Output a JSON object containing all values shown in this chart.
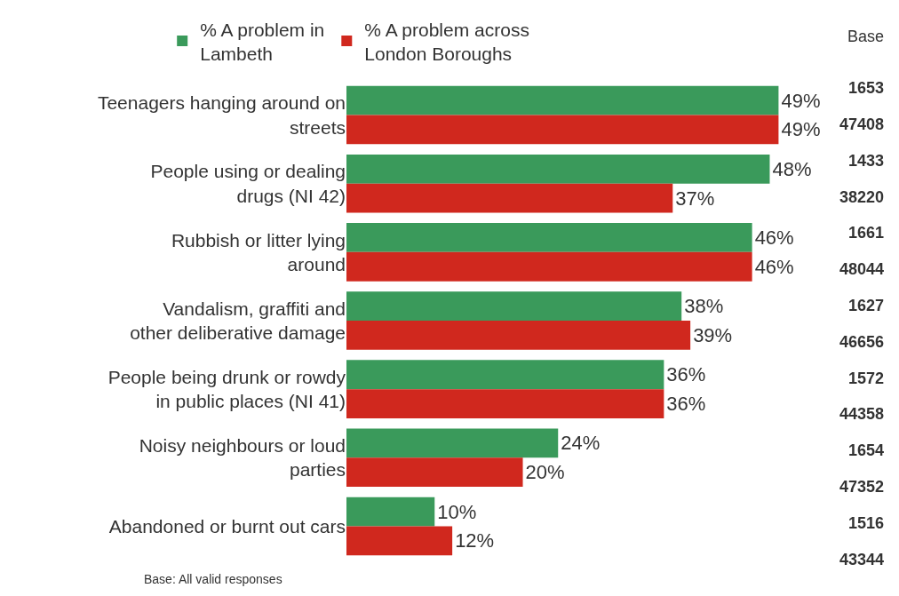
{
  "chart_data": {
    "type": "bar",
    "orientation": "horizontal",
    "categories": [
      "Teenagers hanging around on streets",
      "People using or dealing drugs (NI 42)",
      "Rubbish or litter lying around",
      "Vandalism, graffiti and other deliberative damage",
      "People being drunk or rowdy in public places (NI 41)",
      "Noisy neighbours or loud parties",
      "Abandoned or burnt out cars"
    ],
    "series": [
      {
        "name": "% A problem in Lambeth",
        "color": "#3a9a5b",
        "values": [
          49,
          48,
          46,
          38,
          36,
          24,
          10
        ],
        "value_labels": [
          "49%",
          "48%",
          "46%",
          "38%",
          "36%",
          "24%",
          "10%"
        ]
      },
      {
        "name": "% A problem across London Boroughs",
        "color": "#d0281e",
        "values": [
          49,
          37,
          46,
          39,
          36,
          20,
          12
        ],
        "value_labels": [
          "49%",
          "37%",
          "46%",
          "39%",
          "36%",
          "20%",
          "12%"
        ]
      }
    ],
    "legend": "top",
    "annotations": [
      "Base",
      "1653",
      "47408",
      "1433",
      "38220",
      "1661",
      "48044",
      "1627",
      "46656",
      "1572",
      "44358",
      "1654",
      "47352",
      "1516",
      "43344",
      "Base: All valid responses"
    ]
  }
}
